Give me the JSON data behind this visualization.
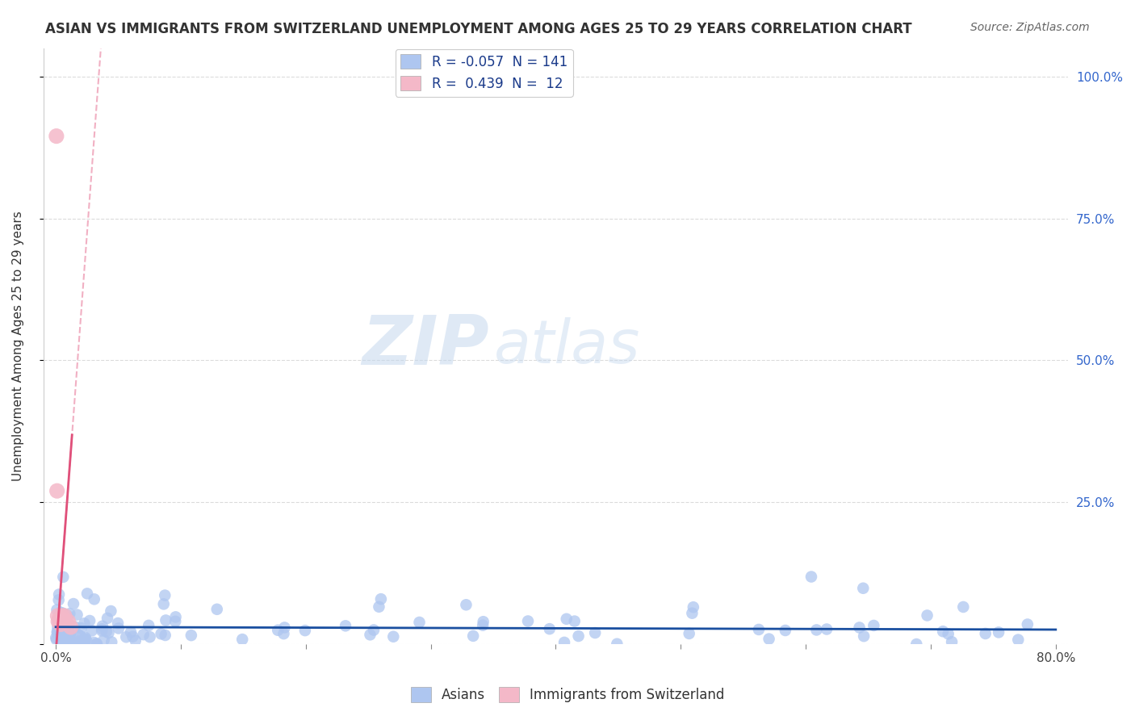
{
  "title": "ASIAN VS IMMIGRANTS FROM SWITZERLAND UNEMPLOYMENT AMONG AGES 25 TO 29 YEARS CORRELATION CHART",
  "source": "Source: ZipAtlas.com",
  "ylabel": "Unemployment Among Ages 25 to 29 years",
  "xlim": [
    0.0,
    0.8
  ],
  "ylim": [
    0.0,
    1.05
  ],
  "watermark_zip": "ZIP",
  "watermark_atlas": "atlas",
  "asian_color": "#aec6f0",
  "swiss_color": "#f4b8c8",
  "asian_line_color": "#1a4fa0",
  "swiss_line_color": "#e0507a",
  "asian_r": -0.057,
  "swiss_r": 0.439,
  "asian_n": 141,
  "swiss_n": 12,
  "background_color": "#ffffff",
  "grid_color": "#cccccc",
  "title_color": "#333333"
}
